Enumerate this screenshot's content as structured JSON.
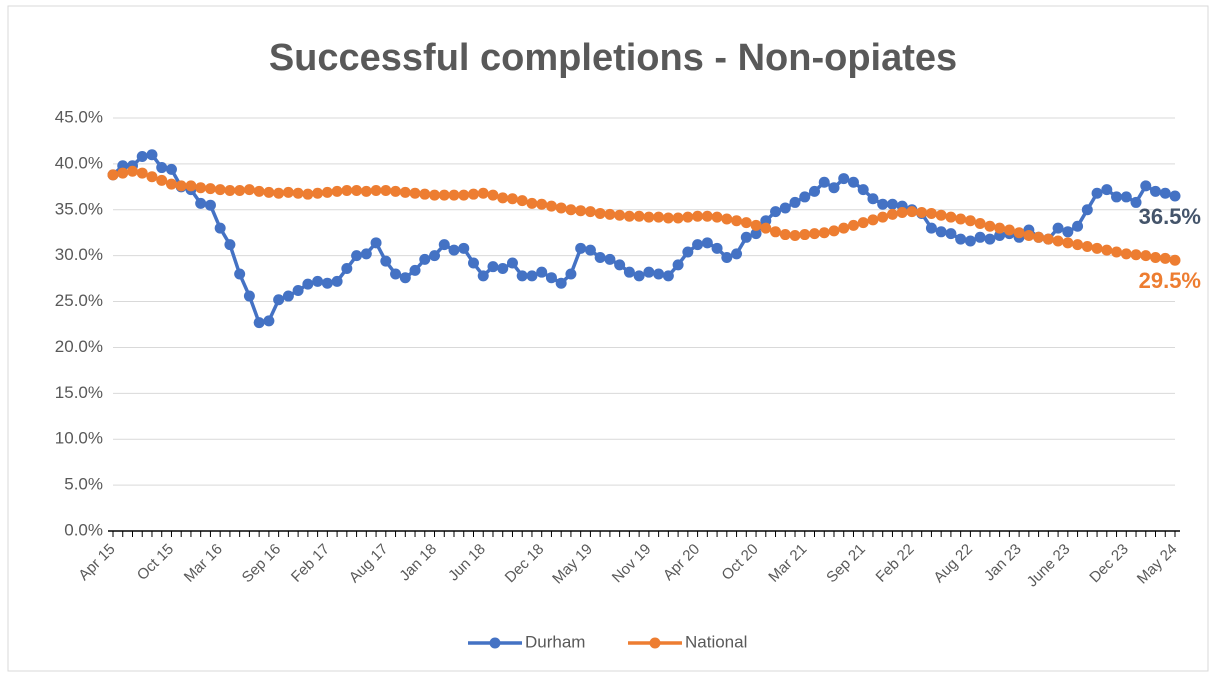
{
  "chart_data": {
    "type": "line",
    "title": "Successful completions - Non-opiates",
    "categories": [
      "Apr 15",
      null,
      null,
      null,
      null,
      null,
      "Oct 15",
      null,
      null,
      null,
      null,
      "Mar 16",
      null,
      null,
      null,
      null,
      null,
      "Sep 16",
      null,
      null,
      null,
      null,
      "Feb 17",
      null,
      null,
      null,
      null,
      null,
      "Aug 17",
      null,
      null,
      null,
      null,
      "Jan 18",
      null,
      null,
      null,
      null,
      "Jun 18",
      null,
      null,
      null,
      null,
      null,
      "Dec 18",
      null,
      null,
      null,
      null,
      "May 19",
      null,
      null,
      null,
      null,
      null,
      "Nov 19",
      null,
      null,
      null,
      null,
      "Apr 20",
      null,
      null,
      null,
      null,
      null,
      "Oct 20",
      null,
      null,
      null,
      null,
      "Mar 21",
      null,
      null,
      null,
      null,
      null,
      "Sep 21",
      null,
      null,
      null,
      null,
      "Feb 22",
      null,
      null,
      null,
      null,
      null,
      "Aug 22",
      null,
      null,
      null,
      null,
      "Jan 23",
      null,
      null,
      null,
      null,
      "June 23",
      null,
      null,
      null,
      null,
      null,
      "Dec 23",
      null,
      null,
      null,
      null,
      "May 24"
    ],
    "series": [
      {
        "name": "Durham",
        "color": "#4472c4",
        "label_color": "#44546a",
        "values": [
          38.8,
          39.8,
          39.8,
          40.8,
          41.0,
          39.6,
          39.4,
          37.5,
          37.2,
          35.7,
          35.5,
          33.0,
          31.2,
          28.0,
          25.6,
          22.7,
          22.9,
          25.2,
          25.6,
          26.2,
          26.9,
          27.2,
          27.0,
          27.2,
          28.6,
          30.0,
          30.2,
          31.4,
          29.4,
          28.0,
          27.6,
          28.4,
          29.6,
          30.0,
          31.2,
          30.6,
          30.8,
          29.2,
          27.8,
          28.8,
          28.6,
          29.2,
          27.8,
          27.8,
          28.2,
          27.6,
          27.0,
          28.0,
          30.8,
          30.6,
          29.8,
          29.6,
          29.0,
          28.2,
          27.8,
          28.2,
          28.0,
          27.8,
          29.0,
          30.4,
          31.2,
          31.4,
          30.8,
          29.8,
          30.2,
          32.0,
          32.4,
          33.8,
          34.8,
          35.2,
          35.8,
          36.4,
          37.0,
          38.0,
          37.4,
          38.4,
          38.0,
          37.2,
          36.2,
          35.6,
          35.6,
          35.4,
          35.0,
          34.6,
          33.0,
          32.6,
          32.4,
          31.8,
          31.6,
          32.0,
          31.8,
          32.2,
          32.4,
          32.0,
          32.8,
          32.0,
          31.8,
          33.0,
          32.6,
          33.2,
          35.0,
          36.8,
          37.2,
          36.4,
          36.4,
          35.8,
          37.6,
          37.0,
          36.8,
          36.5
        ],
        "value_labels": [
          null,
          null,
          null,
          null,
          null,
          null,
          null,
          null,
          null,
          null,
          null,
          null,
          null,
          null,
          null,
          null,
          null,
          null,
          null,
          null,
          null,
          null,
          null,
          null,
          null,
          null,
          null,
          null,
          null,
          null,
          null,
          null,
          null,
          null,
          null,
          null,
          null,
          null,
          null,
          null,
          null,
          null,
          null,
          null,
          null,
          null,
          null,
          null,
          null,
          null,
          null,
          null,
          null,
          null,
          null,
          null,
          null,
          null,
          null,
          null,
          null,
          null,
          null,
          null,
          null,
          null,
          null,
          null,
          null,
          null,
          null,
          null,
          null,
          null,
          null,
          null,
          null,
          null,
          null,
          null,
          null,
          null,
          null,
          null,
          null,
          null,
          null,
          null,
          null,
          null,
          null,
          null,
          null,
          null,
          null,
          null,
          null,
          null,
          null,
          null,
          null,
          null,
          null,
          null,
          null,
          null,
          null,
          null,
          null,
          "36.5%"
        ]
      },
      {
        "name": "National",
        "color": "#ed7d31",
        "label_color": "#ed7d31",
        "values": [
          38.8,
          39.0,
          39.2,
          39.0,
          38.6,
          38.2,
          37.8,
          37.6,
          37.6,
          37.4,
          37.3,
          37.2,
          37.1,
          37.1,
          37.2,
          37.0,
          36.9,
          36.8,
          36.9,
          36.8,
          36.7,
          36.8,
          36.9,
          37.0,
          37.1,
          37.1,
          37.0,
          37.1,
          37.1,
          37.0,
          36.9,
          36.8,
          36.7,
          36.6,
          36.6,
          36.6,
          36.6,
          36.7,
          36.8,
          36.6,
          36.3,
          36.2,
          36.0,
          35.7,
          35.6,
          35.4,
          35.2,
          35.0,
          34.9,
          34.8,
          34.6,
          34.5,
          34.4,
          34.3,
          34.3,
          34.2,
          34.2,
          34.1,
          34.1,
          34.2,
          34.3,
          34.3,
          34.2,
          34.0,
          33.8,
          33.6,
          33.3,
          33.0,
          32.6,
          32.3,
          32.2,
          32.3,
          32.4,
          32.5,
          32.7,
          33.0,
          33.3,
          33.6,
          33.9,
          34.2,
          34.5,
          34.7,
          34.8,
          34.7,
          34.6,
          34.4,
          34.2,
          34.0,
          33.8,
          33.5,
          33.2,
          33.0,
          32.8,
          32.5,
          32.2,
          32.0,
          31.8,
          31.6,
          31.4,
          31.2,
          31.0,
          30.8,
          30.6,
          30.4,
          30.2,
          30.1,
          30.0,
          29.8,
          29.7,
          29.5
        ],
        "value_labels": [
          null,
          null,
          null,
          null,
          null,
          null,
          null,
          null,
          null,
          null,
          null,
          null,
          null,
          null,
          null,
          null,
          null,
          null,
          null,
          null,
          null,
          null,
          null,
          null,
          null,
          null,
          null,
          null,
          null,
          null,
          null,
          null,
          null,
          null,
          null,
          null,
          null,
          null,
          null,
          null,
          null,
          null,
          null,
          null,
          null,
          null,
          null,
          null,
          null,
          null,
          null,
          null,
          null,
          null,
          null,
          null,
          null,
          null,
          null,
          null,
          null,
          null,
          null,
          null,
          null,
          null,
          null,
          null,
          null,
          null,
          null,
          null,
          null,
          null,
          null,
          null,
          null,
          null,
          null,
          null,
          null,
          null,
          null,
          null,
          null,
          null,
          null,
          null,
          null,
          null,
          null,
          null,
          null,
          null,
          null,
          null,
          null,
          null,
          null,
          null,
          null,
          null,
          null,
          null,
          null,
          null,
          null,
          null,
          null,
          "29.5%"
        ]
      }
    ],
    "ylim": [
      0,
      45
    ],
    "yticks": [
      {
        "value": 0,
        "label": "0.0%"
      },
      {
        "value": 5,
        "label": "5.0%"
      },
      {
        "value": 10,
        "label": "10.0%"
      },
      {
        "value": 15,
        "label": "15.0%"
      },
      {
        "value": 20,
        "label": "20.0%"
      },
      {
        "value": 25,
        "label": "25.0%"
      },
      {
        "value": 30,
        "label": "30.0%"
      },
      {
        "value": 35,
        "label": "35.0%"
      },
      {
        "value": 40,
        "label": "40.0%"
      },
      {
        "value": 45,
        "label": "45.0%"
      }
    ],
    "grid": true,
    "legend": "bottom"
  }
}
